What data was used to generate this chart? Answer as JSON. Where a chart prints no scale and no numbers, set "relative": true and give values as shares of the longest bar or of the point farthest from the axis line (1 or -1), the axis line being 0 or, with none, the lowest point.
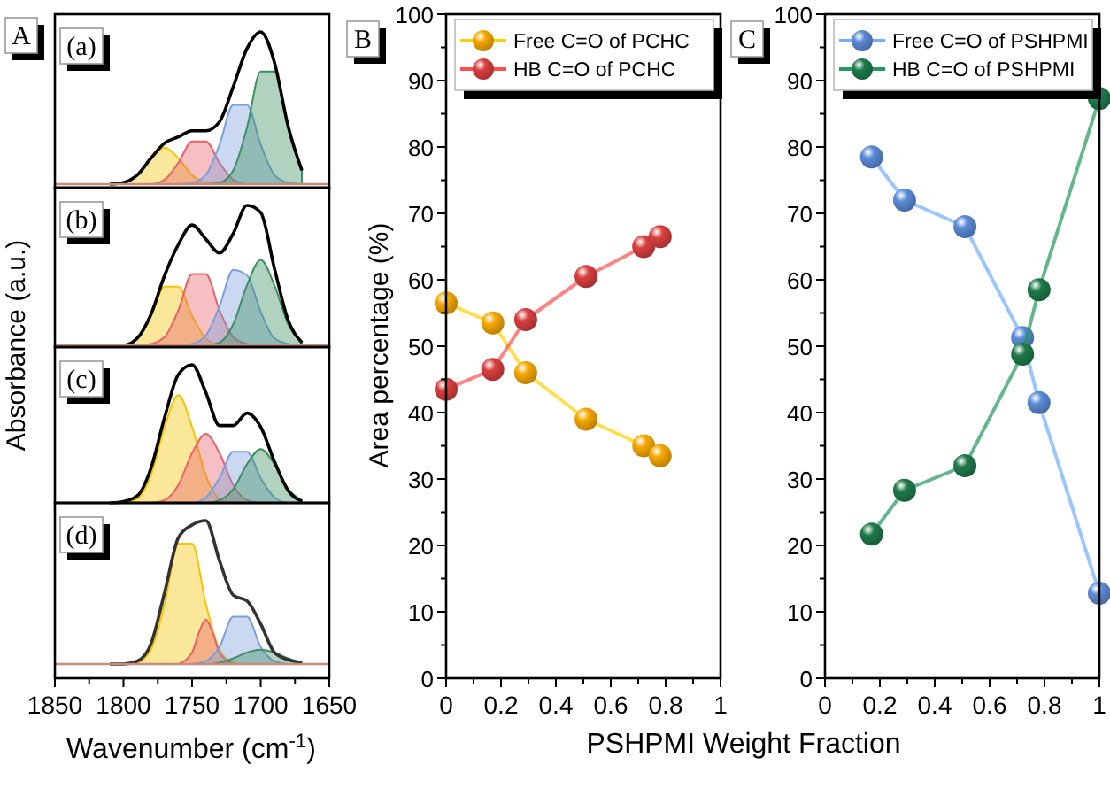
{
  "chart_data": [
    {
      "type": "area",
      "title": "(a)",
      "ylabel": "Absorbance (a.u.)",
      "annotations": [
        "A"
      ],
      "relative": true,
      "xlim": [
        1850,
        1650
      ],
      "tick_labels": false,
      "x": [
        1810,
        1800,
        1790,
        1780,
        1770,
        1760,
        1750,
        1740,
        1730,
        1720,
        1710,
        1700,
        1690,
        1680,
        1670
      ],
      "series": [
        {
          "color": "#f5c400",
          "values": [
            0,
            0.01,
            0.06,
            0.17,
            0.24,
            0.17,
            0.06,
            0.01,
            0,
            0,
            0,
            0,
            0,
            0,
            0
          ]
        },
        {
          "color": "#e8606a",
          "values": [
            0,
            0,
            0,
            0,
            0.03,
            0.14,
            0.28,
            0.28,
            0.14,
            0.03,
            0,
            0,
            0,
            0,
            0
          ]
        },
        {
          "color": "#7b9fdc",
          "values": [
            0,
            0,
            0,
            0,
            0,
            0,
            0.01,
            0.06,
            0.26,
            0.52,
            0.52,
            0.26,
            0.06,
            0.01,
            0
          ]
        },
        {
          "color": "#3d8f5f",
          "values": [
            0,
            0,
            0,
            0,
            0,
            0,
            0,
            0,
            0.01,
            0.09,
            0.37,
            0.74,
            0.74,
            0.37,
            0.09
          ]
        },
        {
          "type": "line",
          "color": "#000000",
          "values": [
            0,
            0.01,
            0.06,
            0.17,
            0.27,
            0.31,
            0.35,
            0.35,
            0.41,
            0.64,
            0.89,
            1,
            0.8,
            0.38,
            0.09
          ]
        }
      ]
    },
    {
      "type": "area",
      "title": "(b)",
      "relative": true,
      "xlim": [
        1850,
        1650
      ],
      "tick_labels": false,
      "x": [
        1810,
        1800,
        1790,
        1780,
        1770,
        1760,
        1750,
        1740,
        1730,
        1720,
        1710,
        1700,
        1690,
        1680,
        1670
      ],
      "series": [
        {
          "color": "#f5c400",
          "values": [
            0,
            0,
            0.05,
            0.21,
            0.42,
            0.42,
            0.21,
            0.05,
            0,
            0,
            0,
            0,
            0,
            0,
            0
          ]
        },
        {
          "color": "#e8606a",
          "values": [
            0,
            0,
            0,
            0.01,
            0.06,
            0.25,
            0.51,
            0.51,
            0.25,
            0.06,
            0.01,
            0,
            0,
            0,
            0
          ]
        },
        {
          "color": "#7b9fdc",
          "values": [
            0,
            0,
            0,
            0,
            0,
            0,
            0.01,
            0.07,
            0.28,
            0.54,
            0.5,
            0.24,
            0.05,
            0.01,
            0
          ]
        },
        {
          "color": "#3d8f5f",
          "values": [
            0,
            0,
            0,
            0,
            0,
            0,
            0,
            0,
            0.02,
            0.15,
            0.43,
            0.61,
            0.43,
            0.15,
            0.02
          ]
        },
        {
          "type": "line",
          "color": "#000000",
          "values": [
            0,
            0,
            0.05,
            0.22,
            0.5,
            0.72,
            0.86,
            0.76,
            0.66,
            0.8,
            1,
            0.95,
            0.55,
            0.18,
            0.02
          ]
        }
      ]
    },
    {
      "type": "area",
      "title": "(c)",
      "relative": true,
      "xlim": [
        1850,
        1650
      ],
      "tick_labels": false,
      "x": [
        1810,
        1800,
        1790,
        1780,
        1770,
        1760,
        1750,
        1740,
        1730,
        1720,
        1710,
        1700,
        1690,
        1680,
        1670
      ],
      "series": [
        {
          "color": "#f5c400",
          "values": [
            0,
            0,
            0.03,
            0.2,
            0.55,
            0.78,
            0.55,
            0.2,
            0.03,
            0,
            0,
            0,
            0,
            0,
            0
          ]
        },
        {
          "color": "#e8606a",
          "values": [
            0,
            0,
            0,
            0,
            0.02,
            0.13,
            0.36,
            0.5,
            0.36,
            0.13,
            0.02,
            0,
            0,
            0,
            0
          ]
        },
        {
          "color": "#7b9fdc",
          "values": [
            0,
            0,
            0,
            0,
            0,
            0,
            0,
            0.04,
            0.18,
            0.37,
            0.37,
            0.18,
            0.04,
            0,
            0
          ]
        },
        {
          "color": "#3d8f5f",
          "values": [
            0,
            0,
            0,
            0,
            0,
            0,
            0,
            0,
            0.02,
            0.1,
            0.28,
            0.39,
            0.28,
            0.1,
            0.02
          ]
        },
        {
          "type": "line",
          "color": "#000000",
          "values": [
            0,
            0.01,
            0.05,
            0.25,
            0.62,
            0.93,
            1,
            0.8,
            0.56,
            0.56,
            0.65,
            0.55,
            0.3,
            0.09,
            0.01
          ]
        }
      ]
    },
    {
      "type": "area",
      "title": "(d)",
      "xlabel": "Wavenumber (cm$^{-1}$)",
      "relative": true,
      "xlim": [
        1850,
        1650
      ],
      "xticks": [
        1850,
        {
          "value": 1825,
          "label": null
        },
        1800,
        {
          "value": 1775,
          "label": null
        },
        1750,
        {
          "value": 1725,
          "label": null
        },
        1700,
        {
          "value": 1675,
          "label": null
        },
        1650
      ],
      "tick_labels": "x",
      "x": [
        1810,
        1800,
        1790,
        1780,
        1770,
        1760,
        1750,
        1740,
        1730,
        1720,
        1710,
        1700,
        1690,
        1680,
        1670
      ],
      "series": [
        {
          "color": "#f5c400",
          "values": [
            0,
            0,
            0.01,
            0.1,
            0.42,
            0.84,
            0.84,
            0.42,
            0.1,
            0.01,
            0,
            0,
            0,
            0,
            0
          ]
        },
        {
          "color": "#e8606a",
          "x": [
            1760,
            1750,
            1745,
            1740,
            1735,
            1730,
            1720
          ],
          "values": [
            0,
            0.08,
            0.22,
            0.31,
            0.22,
            0.08,
            0
          ]
        },
        {
          "color": "#7b9fdc",
          "values": [
            0,
            0,
            0,
            0,
            0,
            0,
            0,
            0.02,
            0.12,
            0.33,
            0.33,
            0.12,
            0.02,
            0,
            0
          ]
        },
        {
          "color": "#3d8f5f",
          "values": [
            0,
            0,
            0,
            0,
            0,
            0,
            0,
            0,
            0.01,
            0.04,
            0.08,
            0.1,
            0.08,
            0.04,
            0.01
          ]
        },
        {
          "type": "line",
          "color": "#333333",
          "values": [
            0,
            0,
            0.02,
            0.14,
            0.5,
            0.88,
            0.97,
            1,
            0.72,
            0.48,
            0.44,
            0.28,
            0.08,
            0.03,
            0.01
          ]
        }
      ]
    },
    {
      "type": "line",
      "ylabel": "Area percentage (%)",
      "xlabel": "PSHPMI Weight Fraction",
      "annotations": [
        "B"
      ],
      "legend": "top left",
      "marker": "circle",
      "xlim": [
        0,
        1
      ],
      "ylim": [
        0,
        100
      ],
      "xticks": [
        0,
        {
          "value": 0.1,
          "label": null
        },
        0.2,
        {
          "value": 0.3,
          "label": null
        },
        0.4,
        {
          "value": 0.5,
          "label": null
        },
        0.6,
        {
          "value": 0.7,
          "label": null
        },
        0.8,
        {
          "value": 0.9,
          "label": null
        },
        1
      ],
      "yticks": [
        0,
        {
          "value": 5,
          "label": null
        },
        10,
        {
          "value": 15,
          "label": null
        },
        20,
        {
          "value": 25,
          "label": null
        },
        30,
        {
          "value": 35,
          "label": null
        },
        40,
        {
          "value": 45,
          "label": null
        },
        50,
        {
          "value": 55,
          "label": null
        },
        60,
        {
          "value": 65,
          "label": null
        },
        70,
        {
          "value": 75,
          "label": null
        },
        80,
        {
          "value": 85,
          "label": null
        },
        90,
        {
          "value": 95,
          "label": null
        },
        100
      ],
      "x": [
        0,
        0.17,
        0.29,
        0.51,
        0.72,
        0.78
      ],
      "series": [
        {
          "name": "Free C=O of PCHC",
          "color": "#f5a800",
          "values": [
            56.5,
            53.5,
            46,
            39,
            35,
            33.5
          ]
        },
        {
          "name": "HB C=O of PCHC",
          "color": "#d93f3f",
          "values": [
            43.5,
            46.5,
            54,
            60.5,
            65,
            66.5
          ]
        }
      ]
    },
    {
      "type": "line",
      "annotations": [
        "C"
      ],
      "legend": "top right",
      "marker": "circle",
      "xlim": [
        0,
        1
      ],
      "ylim": [
        0,
        100
      ],
      "xticks": [
        0,
        {
          "value": 0.1,
          "label": null
        },
        0.2,
        {
          "value": 0.3,
          "label": null
        },
        0.4,
        {
          "value": 0.5,
          "label": null
        },
        0.6,
        {
          "value": 0.7,
          "label": null
        },
        0.8,
        {
          "value": 0.9,
          "label": null
        },
        1
      ],
      "yticks": [
        0,
        {
          "value": 5,
          "label": null
        },
        10,
        {
          "value": 15,
          "label": null
        },
        20,
        {
          "value": 25,
          "label": null
        },
        30,
        {
          "value": 35,
          "label": null
        },
        40,
        {
          "value": 45,
          "label": null
        },
        50,
        {
          "value": 55,
          "label": null
        },
        60,
        {
          "value": 65,
          "label": null
        },
        70,
        {
          "value": 75,
          "label": null
        },
        80,
        {
          "value": 85,
          "label": null
        },
        90,
        {
          "value": 95,
          "label": null
        },
        100
      ],
      "x": [
        0.17,
        0.29,
        0.51,
        0.72,
        0.78,
        1
      ],
      "series": [
        {
          "name": "Free C=O of PSHPMI",
          "color": "#5b8bd6",
          "values": [
            78.5,
            72,
            68,
            51.3,
            41.5,
            12.8
          ]
        },
        {
          "name": "HB C=O of PSHPMI",
          "color": "#1e7a4a",
          "values": [
            21.7,
            28.3,
            32,
            48.8,
            58.5,
            87.3
          ]
        }
      ]
    }
  ]
}
